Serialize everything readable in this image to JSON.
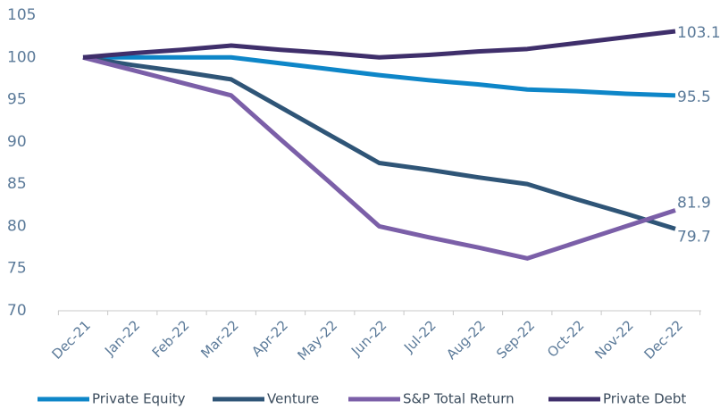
{
  "chart_data": {
    "type": "line",
    "categories": [
      "Dec-21",
      "Jan-22",
      "Feb-22",
      "Mar-22",
      "Apr-22",
      "May-22",
      "Jun-22",
      "Jul-22",
      "Aug-22",
      "Sep-22",
      "Oct-22",
      "Nov-22",
      "Dec-22"
    ],
    "series": [
      {
        "name": "Private Equity",
        "color": "#0e86c8",
        "values": [
          100,
          100,
          100,
          100,
          99.3,
          98.6,
          97.9,
          97.3,
          96.8,
          96.2,
          96.0,
          95.7,
          95.5
        ]
      },
      {
        "name": "Venture",
        "color": "#2f5577",
        "values": [
          100,
          99.1,
          98.3,
          97.4,
          94.1,
          90.8,
          87.5,
          86.7,
          85.8,
          85,
          83.2,
          81.5,
          79.7
        ]
      },
      {
        "name": "S&P Total Return",
        "color": "#7b5fa8",
        "values": [
          100,
          98.5,
          97,
          95.5,
          90.3,
          85.2,
          80,
          78.7,
          77.5,
          76.2,
          78.1,
          80,
          81.9
        ]
      },
      {
        "name": "Private Debt",
        "color": "#3f2f6b",
        "values": [
          100,
          100.5,
          100.9,
          101.4,
          100.9,
          100.5,
          100,
          100.3,
          100.7,
          101,
          101.7,
          102.4,
          103.1
        ]
      }
    ],
    "ylim": [
      70,
      105
    ],
    "yticks": [
      70,
      75,
      80,
      85,
      90,
      95,
      100,
      105
    ],
    "grid": false,
    "legend": "bottom"
  }
}
